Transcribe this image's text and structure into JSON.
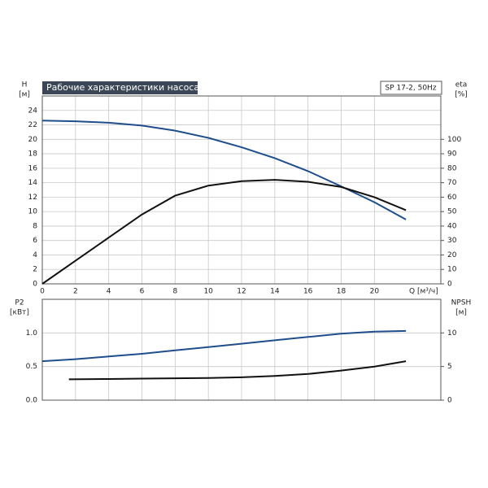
{
  "chart_data": [
    {
      "type": "line",
      "title": "Рабочие характеристики насоса",
      "subtitle": "SP 17-2, 50Hz",
      "y_label": "H",
      "y_unit": "[м]",
      "y2_label": "eta",
      "y2_unit": "[%]",
      "x_label": "Q [м³/ч]",
      "xlim": [
        0,
        24
      ],
      "xticks": [
        0,
        2,
        4,
        6,
        8,
        10,
        12,
        14,
        16,
        18,
        20
      ],
      "ylim": [
        0,
        26
      ],
      "yticks": [
        0,
        2,
        4,
        6,
        8,
        10,
        12,
        14,
        16,
        18,
        20,
        22,
        24
      ],
      "y2lim": [
        0,
        130
      ],
      "y2ticks": [
        0,
        10,
        20,
        30,
        40,
        50,
        60,
        70,
        80,
        90,
        100
      ],
      "grid": true,
      "series": [
        {
          "color": "#1f4e8c",
          "x": [
            0,
            2,
            4,
            6,
            8,
            10,
            12,
            14,
            16,
            18,
            20,
            21.9
          ],
          "values": [
            22.6,
            22.5,
            22.3,
            21.9,
            21.2,
            20.2,
            18.9,
            17.4,
            15.6,
            13.5,
            11.3,
            8.9
          ]
        },
        {
          "color": "#111111",
          "axis": "y2",
          "x": [
            0,
            2,
            4,
            6,
            8,
            10,
            12,
            14,
            16,
            18,
            20,
            21.9
          ],
          "values": [
            0,
            16,
            32,
            48,
            61,
            68,
            71,
            72,
            70.6,
            67,
            60,
            51
          ]
        }
      ]
    },
    {
      "type": "line",
      "y_label": "P2",
      "y_unit": "[кВт]",
      "y2_label": "NPSH",
      "y2_unit": "[м]",
      "xlim": [
        0,
        24
      ],
      "ylim": [
        0,
        1.5
      ],
      "yticks": [
        {
          "value": 0,
          "label": "0.0"
        },
        {
          "value": 0.5,
          "label": "0.5"
        },
        {
          "value": 1,
          "label": "1.0"
        }
      ],
      "y2lim": [
        0,
        15
      ],
      "y2ticks": [
        0,
        5,
        10
      ],
      "grid": true,
      "series": [
        {
          "color": "#1f4e8c",
          "x": [
            0,
            2,
            4,
            6,
            8,
            10,
            12,
            14,
            16,
            18,
            20,
            21.9
          ],
          "values": [
            0.58,
            0.61,
            0.65,
            0.69,
            0.74,
            0.79,
            0.84,
            0.89,
            0.94,
            0.99,
            1.02,
            1.03
          ]
        },
        {
          "color": "#111111",
          "axis": "y2",
          "x": [
            1.6,
            4,
            6,
            8,
            10,
            12,
            14,
            16,
            18,
            20,
            21.9
          ],
          "values": [
            3.1,
            3.15,
            3.2,
            3.25,
            3.3,
            3.4,
            3.6,
            3.9,
            4.4,
            5,
            5.8
          ]
        }
      ]
    }
  ]
}
